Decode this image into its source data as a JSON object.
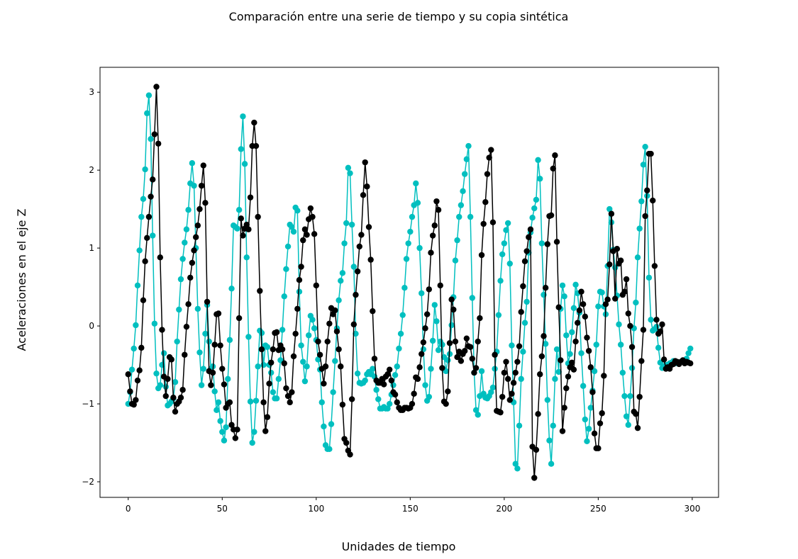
{
  "chart_data": {
    "type": "line",
    "title": "Comparación entre una serie de tiempo y su copia sintética",
    "x_label": "Unidades de tiempo",
    "y_label": "Aceleraciones en el eje Z",
    "x": [
      0,
      1,
      2,
      3,
      4,
      5,
      6,
      7,
      8,
      9,
      10,
      11,
      12,
      13,
      14,
      15,
      16,
      17,
      18,
      19,
      20,
      21,
      22,
      23,
      24,
      25,
      26,
      27,
      28,
      29,
      30,
      31,
      32,
      33,
      34,
      35,
      36,
      37,
      38,
      39,
      40,
      41,
      42,
      43,
      44,
      45,
      46,
      47,
      48,
      49,
      50,
      51,
      52,
      53,
      54,
      55,
      56,
      57,
      58,
      59,
      60,
      61,
      62,
      63,
      64,
      65,
      66,
      67,
      68,
      69,
      70,
      71,
      72,
      73,
      74,
      75,
      76,
      77,
      78,
      79,
      80,
      81,
      82,
      83,
      84,
      85,
      86,
      87,
      88,
      89,
      90,
      91,
      92,
      93,
      94,
      95,
      96,
      97,
      98,
      99,
      100,
      101,
      102,
      103,
      104,
      105,
      106,
      107,
      108,
      109,
      110,
      111,
      112,
      113,
      114,
      115,
      116,
      117,
      118,
      119,
      120,
      121,
      122,
      123,
      124,
      125,
      126,
      127,
      128,
      129,
      130,
      131,
      132,
      133,
      134,
      135,
      136,
      137,
      138,
      139,
      140,
      141,
      142,
      143,
      144,
      145,
      146,
      147,
      148,
      149,
      150,
      151,
      152,
      153,
      154,
      155,
      156,
      157,
      158,
      159,
      160,
      161,
      162,
      163,
      164,
      165,
      166,
      167,
      168,
      169,
      170,
      171,
      172,
      173,
      174,
      175,
      176,
      177,
      178,
      179,
      180,
      181,
      182,
      183,
      184,
      185,
      186,
      187,
      188,
      189,
      190,
      191,
      192,
      193,
      194,
      195,
      196,
      197,
      198,
      199,
      200,
      201,
      202,
      203,
      204,
      205,
      206,
      207,
      208,
      209,
      210,
      211,
      212,
      213,
      214,
      215,
      216,
      217,
      218,
      219,
      220,
      221,
      222,
      223,
      224,
      225,
      226,
      227,
      228,
      229,
      230,
      231,
      232,
      233,
      234,
      235,
      236,
      237,
      238,
      239,
      240,
      241,
      242,
      243,
      244,
      245,
      246,
      247,
      248,
      249,
      250,
      251,
      252,
      253,
      254,
      255,
      256,
      257,
      258,
      259,
      260,
      261,
      262,
      263,
      264,
      265,
      266,
      267,
      268,
      269,
      270,
      271,
      272,
      273,
      274,
      275,
      276,
      277,
      278,
      279,
      280,
      281,
      282,
      283,
      284,
      285,
      286,
      287,
      288,
      289,
      290,
      291,
      292,
      293,
      294,
      295,
      296,
      297,
      298,
      299
    ],
    "series": [
      {
        "color": "#00bfbf",
        "values": [
          -1.0,
          -0.85,
          -0.56,
          -0.29,
          0.01,
          0.52,
          0.97,
          1.4,
          1.63,
          2.01,
          2.73,
          2.96,
          2.4,
          1.16,
          0.03,
          -0.61,
          -0.8,
          -0.76,
          -0.5,
          -0.35,
          -0.78,
          -1.02,
          -1.0,
          -0.97,
          -0.93,
          -0.72,
          -0.2,
          0.21,
          0.6,
          0.86,
          1.07,
          1.24,
          1.49,
          1.83,
          2.09,
          1.8,
          1.0,
          0.22,
          -0.34,
          -0.76,
          -0.55,
          -0.1,
          0.27,
          -0.2,
          -0.55,
          -0.52,
          -0.84,
          -1.08,
          -0.98,
          -1.22,
          -1.36,
          -1.47,
          -1.3,
          -0.68,
          -0.18,
          0.48,
          1.29,
          1.27,
          1.25,
          1.49,
          2.27,
          2.69,
          2.08,
          0.88,
          -0.14,
          -0.97,
          -1.5,
          -1.36,
          -0.96,
          -0.52,
          -0.06,
          -0.09,
          -0.5,
          -0.25,
          -0.27,
          -0.5,
          -0.6,
          -0.85,
          -0.93,
          -0.93,
          -0.68,
          -0.44,
          -0.05,
          0.38,
          0.73,
          1.02,
          1.3,
          1.27,
          1.21,
          1.52,
          1.48,
          0.44,
          -0.25,
          -0.46,
          -0.71,
          -0.52,
          -0.12,
          0.13,
          0.08,
          -0.03,
          -0.18,
          -0.43,
          -0.56,
          -0.98,
          -1.29,
          -1.53,
          -1.58,
          -1.58,
          -1.26,
          -0.85,
          -0.45,
          -0.03,
          0.33,
          0.58,
          0.68,
          1.06,
          1.32,
          2.03,
          1.96,
          1.3,
          0.76,
          -0.1,
          -0.61,
          -0.73,
          -0.74,
          -0.73,
          -0.7,
          -0.62,
          -0.59,
          -0.62,
          -0.55,
          -0.65,
          -0.82,
          -0.94,
          -1.06,
          -1.06,
          -1.04,
          -1.06,
          -1.06,
          -1.0,
          -0.88,
          -0.76,
          -0.63,
          -0.52,
          -0.29,
          -0.1,
          0.14,
          0.49,
          0.86,
          1.06,
          1.21,
          1.4,
          1.55,
          1.83,
          1.58,
          1.0,
          0.42,
          -0.3,
          -0.76,
          -0.96,
          -0.91,
          -0.55,
          -0.19,
          0.27,
          0.06,
          -0.31,
          -0.2,
          -0.24,
          -0.4,
          -0.58,
          -0.44,
          -0.36,
          0.01,
          0.37,
          0.84,
          1.1,
          1.4,
          1.55,
          1.73,
          1.95,
          2.14,
          2.31,
          1.4,
          0.36,
          -0.6,
          -1.08,
          -1.14,
          -0.9,
          -0.58,
          -0.87,
          -0.92,
          -0.93,
          -0.9,
          -0.85,
          -0.79,
          -0.55,
          -0.33,
          0.14,
          0.58,
          0.92,
          1.06,
          1.23,
          1.32,
          0.8,
          -0.25,
          -0.98,
          -1.77,
          -1.83,
          -1.28,
          -0.68,
          -0.33,
          0.04,
          0.31,
          0.94,
          1.2,
          1.39,
          1.51,
          1.62,
          2.13,
          1.89,
          1.06,
          0.4,
          -0.23,
          -0.95,
          -1.47,
          -1.77,
          -1.28,
          -0.68,
          -0.3,
          -0.59,
          0.22,
          0.52,
          0.38,
          -0.12,
          -0.48,
          -0.36,
          -0.08,
          0.23,
          0.53,
          0.42,
          0.17,
          -0.35,
          -0.77,
          -1.2,
          -1.48,
          -1.32,
          -1.05,
          -0.83,
          -0.58,
          -0.24,
          0.25,
          0.44,
          0.43,
          0.25,
          0.15,
          0.77,
          1.5,
          1.33,
          0.98,
          0.75,
          0.39,
          0.02,
          -0.24,
          -0.6,
          -0.9,
          -1.16,
          -1.27,
          -0.9,
          -0.54,
          -0.03,
          0.3,
          0.88,
          1.25,
          1.6,
          2.07,
          2.3,
          1.67,
          0.62,
          0.08,
          -0.06,
          -0.04,
          -0.01,
          -0.28,
          -0.47,
          -0.54,
          -0.52,
          -0.5,
          -0.5,
          -0.48,
          -0.47,
          -0.45,
          -0.46,
          -0.48,
          -0.47,
          -0.46,
          -0.45,
          -0.44,
          -0.42,
          -0.35,
          -0.29
        ]
      },
      {
        "color": "#000000",
        "values": [
          -0.62,
          -0.84,
          -1.0,
          -1.01,
          -0.95,
          -0.7,
          -0.57,
          -0.28,
          0.33,
          0.83,
          1.13,
          1.4,
          1.66,
          1.88,
          2.46,
          3.07,
          2.34,
          0.88,
          -0.05,
          -0.65,
          -0.9,
          -0.68,
          -0.4,
          -0.43,
          -0.92,
          -1.1,
          -1.0,
          -0.97,
          -0.92,
          -0.82,
          -0.37,
          -0.01,
          0.28,
          0.62,
          0.81,
          0.97,
          1.14,
          1.29,
          1.5,
          1.8,
          2.06,
          1.58,
          0.31,
          -0.58,
          -0.76,
          -0.6,
          -0.24,
          0.15,
          0.16,
          -0.25,
          -0.55,
          -0.75,
          -1.05,
          -1.0,
          -0.98,
          -1.27,
          -1.33,
          -1.44,
          -1.33,
          0.1,
          1.38,
          1.16,
          1.25,
          1.3,
          1.24,
          1.65,
          2.31,
          2.61,
          2.31,
          1.4,
          0.45,
          -0.3,
          -0.98,
          -1.35,
          -1.17,
          -0.74,
          -0.47,
          -0.3,
          -0.09,
          -0.08,
          -0.31,
          -0.25,
          -0.3,
          -0.48,
          -0.8,
          -0.9,
          -0.98,
          -0.85,
          -0.39,
          -0.1,
          0.22,
          0.59,
          0.76,
          1.1,
          1.24,
          1.17,
          1.37,
          1.51,
          1.4,
          1.18,
          0.52,
          -0.2,
          -0.37,
          -0.55,
          -0.74,
          -0.52,
          -0.2,
          0.03,
          0.23,
          0.15,
          0.2,
          -0.07,
          -0.3,
          -0.52,
          -1.01,
          -1.45,
          -1.5,
          -1.6,
          -1.65,
          -0.94,
          0.02,
          0.4,
          0.7,
          1.02,
          1.17,
          1.68,
          2.1,
          1.79,
          1.27,
          0.85,
          0.19,
          -0.42,
          -0.7,
          -0.73,
          -0.73,
          -0.68,
          -0.75,
          -0.65,
          -0.62,
          -0.56,
          -0.7,
          -0.85,
          -0.88,
          -0.98,
          -1.05,
          -1.08,
          -1.08,
          -1.05,
          -1.05,
          -1.06,
          -1.05,
          -1.0,
          -0.87,
          -0.66,
          -0.68,
          -0.53,
          -0.36,
          -0.21,
          -0.03,
          0.15,
          0.47,
          0.94,
          1.16,
          1.29,
          1.6,
          1.49,
          0.52,
          -0.54,
          -0.97,
          -1.0,
          -0.84,
          -0.22,
          0.34,
          0.21,
          -0.2,
          -0.4,
          -0.33,
          -0.45,
          -0.36,
          -0.32,
          -0.16,
          -0.26,
          -0.27,
          -0.42,
          -0.6,
          -0.54,
          -0.2,
          0.1,
          0.91,
          1.31,
          1.59,
          1.95,
          2.16,
          2.26,
          1.33,
          -0.37,
          -1.09,
          -1.1,
          -1.11,
          -0.91,
          -0.6,
          -0.46,
          -0.68,
          -0.95,
          -0.87,
          -0.73,
          -0.6,
          -0.46,
          -0.26,
          0.18,
          0.51,
          0.83,
          0.96,
          1.14,
          1.24,
          -1.55,
          -1.95,
          -1.59,
          -1.13,
          -0.62,
          -0.39,
          -0.13,
          0.49,
          1.05,
          1.41,
          1.42,
          2.02,
          2.19,
          1.08,
          0.24,
          -0.44,
          -1.35,
          -1.05,
          -0.8,
          -0.65,
          -0.53,
          -0.47,
          -0.56,
          -0.2,
          0.04,
          0.2,
          0.44,
          0.28,
          0.12,
          -0.15,
          -0.32,
          -0.53,
          -0.85,
          -1.38,
          -1.57,
          -1.57,
          -1.25,
          -1.12,
          -0.64,
          0.28,
          0.34,
          0.79,
          1.44,
          0.96,
          0.35,
          0.99,
          0.8,
          0.84,
          0.4,
          0.44,
          0.6,
          0.16,
          0.0,
          -0.27,
          -1.1,
          -1.13,
          -1.31,
          -0.91,
          -0.45,
          -0.05,
          1.41,
          1.74,
          2.21,
          2.21,
          1.61,
          0.77,
          0.08,
          -0.1,
          -0.07,
          0.02,
          -0.43,
          -0.55,
          -0.53,
          -0.55,
          -0.5,
          -0.49,
          -0.45,
          -0.46,
          -0.49,
          -0.46,
          -0.44,
          -0.48,
          -0.46,
          -0.47,
          -0.48
        ]
      }
    ],
    "xlim": [
      -15,
      314
    ],
    "ylim": [
      -2.2,
      3.32
    ],
    "xticks": [
      0,
      50,
      100,
      150,
      200,
      250,
      300
    ],
    "yticks": [
      {
        "value": -2,
        "label": "−2"
      },
      {
        "value": -1,
        "label": "−1"
      },
      0,
      1,
      2,
      3
    ]
  }
}
